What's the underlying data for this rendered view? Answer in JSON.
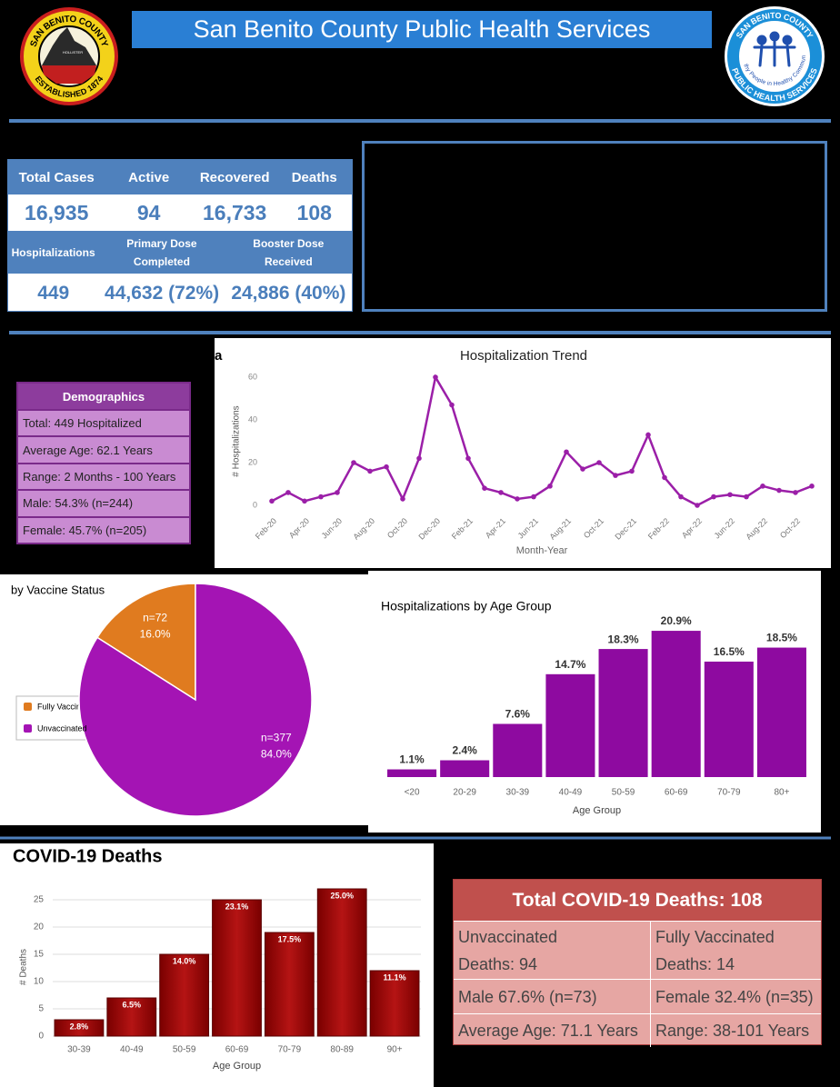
{
  "header": {
    "title": "San Benito County Public Health Services",
    "left_logo": {
      "top": "SAN BENITO COUNTY",
      "center": "HOLLISTER",
      "bottom": "ESTABLISHED 1874"
    },
    "right_logo": {
      "top": "SAN BENITO COUNTY",
      "middle": "Healthy People in Healthy Communities",
      "bottom": "PUBLIC HEALTH SERVICES"
    }
  },
  "summary": {
    "headers": [
      "Total Cases",
      "Active",
      "Recovered",
      "Deaths"
    ],
    "values": [
      "16,935",
      "94",
      "16,733",
      "108"
    ],
    "headers2": [
      "Hospitalizations",
      "Primary Dose Completed",
      "Booster Dose Received"
    ],
    "values2": [
      "449",
      "44,632 (72%)",
      "24,886 (40%)"
    ]
  },
  "demographics": {
    "title": "Demographics",
    "rows": [
      "Total: 449 Hospitalized",
      "Average Age: 62.1 Years",
      "Range: 2 Months - 100 Years",
      "Male: 54.3% (n=244)",
      "Female: 45.7% (n=205)"
    ]
  },
  "deaths_table": {
    "title": "Total COVID-19 Deaths: 108",
    "rows": [
      [
        [
          "Unvaccinated",
          "Deaths: 94"
        ],
        [
          "Fully Vaccinated",
          "Deaths: 14"
        ]
      ],
      [
        [
          "Male 67.6% (n=73)"
        ],
        [
          "Female 32.4% (n=35)"
        ]
      ],
      [
        [
          "Average Age: 71.1 Years"
        ],
        [
          "Range: 38-101 Years"
        ]
      ]
    ]
  },
  "chart_data": [
    {
      "type": "line",
      "title": "Hospitalization Trend",
      "overlap_text": "a",
      "x_label": "Month-Year",
      "y_label": "# Hospitalizations",
      "categories": [
        "Feb-20",
        null,
        "Apr-20",
        null,
        "Jun-20",
        null,
        "Aug-20",
        null,
        "Oct-20",
        null,
        "Dec-20",
        null,
        "Feb-21",
        null,
        "Apr-21",
        null,
        "Jun-21",
        null,
        "Aug-21",
        null,
        "Oct-21",
        null,
        "Dec-21",
        null,
        "Feb-22",
        null,
        "Apr-22",
        null,
        "Jun-22",
        null,
        "Aug-22",
        null,
        "Oct-22",
        null
      ],
      "values": [
        2,
        6,
        2,
        4,
        6,
        20,
        16,
        18,
        3,
        22,
        60,
        47,
        22,
        8,
        6,
        3,
        4,
        9,
        25,
        17,
        20,
        14,
        16,
        33,
        13,
        4,
        0,
        4,
        5,
        4,
        9,
        7,
        6,
        9
      ],
      "color": "#9b1fa8",
      "ylim": [
        0,
        60
      ],
      "yticks": [
        0,
        20,
        40,
        60
      ],
      "grid": false
    },
    {
      "type": "pie",
      "title": "by Vaccine Status",
      "categories": [
        "Fully Vaccinated",
        "Unvaccinated"
      ],
      "values": [
        16.0,
        84.0
      ],
      "value_labels": [
        "16.0%",
        "84.0%"
      ],
      "count_labels": [
        "n=72",
        "n=377"
      ],
      "colors": [
        "#e07b1f",
        "#a414b4"
      ],
      "legend": "left"
    },
    {
      "type": "bar",
      "title": "Hospitalizations by Age Group",
      "x_label": "Age Group",
      "categories": [
        "<20",
        "20-29",
        "30-39",
        "40-49",
        "50-59",
        "60-69",
        "70-79",
        "80+"
      ],
      "values": [
        1.1,
        2.4,
        7.6,
        14.7,
        18.3,
        20.9,
        16.5,
        18.5
      ],
      "value_labels": [
        "1.1%",
        "2.4%",
        "7.6%",
        "14.7%",
        "18.3%",
        "20.9%",
        "16.5%",
        "18.5%"
      ],
      "color": "#8e0aa0"
    },
    {
      "type": "bar",
      "title": "COVID-19 Deaths",
      "x_label": "Age Group",
      "y_label": "# Deaths",
      "categories": [
        "30-39",
        "40-49",
        "50-59",
        "60-69",
        "70-79",
        "80-89",
        "90+"
      ],
      "values": [
        3,
        7,
        15,
        25,
        19,
        27,
        12
      ],
      "percent_labels": [
        "2.8%",
        "6.5%",
        "14.0%",
        "23.1%",
        "17.5%",
        "25.0%",
        "11.1%"
      ],
      "color": "#a50f0f",
      "ylim": [
        0,
        27
      ],
      "yticks": [
        0,
        5,
        10,
        15,
        20,
        25
      ],
      "grid": true
    }
  ]
}
